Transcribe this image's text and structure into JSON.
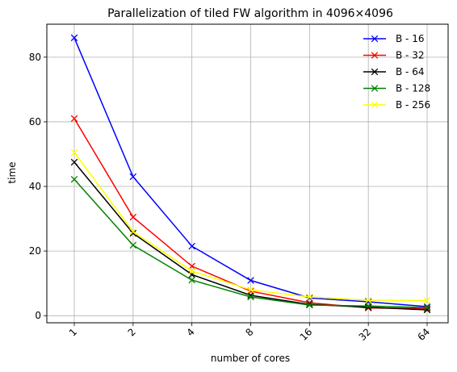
{
  "chart_data": {
    "type": "line",
    "title": "Parallelization of tiled FW algorithm in 4096×4096",
    "xlabel": "number of cores",
    "ylabel": "time",
    "categories": [
      "1",
      "2",
      "4",
      "8",
      "16",
      "32",
      "64"
    ],
    "ylim": [
      -2.2,
      90.2
    ],
    "yticks": [
      0,
      20,
      40,
      60,
      80
    ],
    "grid": true,
    "legend_position": "top-right",
    "marker": "x",
    "series": [
      {
        "name": "B - 16",
        "color": "#0000ff",
        "values": [
          86.0,
          43.0,
          21.5,
          10.9,
          5.5,
          4.3,
          2.8
        ]
      },
      {
        "name": "B - 32",
        "color": "#ff0000",
        "values": [
          61.0,
          30.5,
          15.3,
          7.6,
          4.0,
          2.4,
          2.2
        ]
      },
      {
        "name": "B - 64",
        "color": "#000000",
        "values": [
          47.5,
          25.5,
          12.7,
          6.3,
          3.5,
          2.6,
          1.8
        ]
      },
      {
        "name": "B - 128",
        "color": "#008000",
        "values": [
          42.2,
          21.8,
          11.0,
          5.8,
          3.3,
          3.0,
          2.5
        ]
      },
      {
        "name": "B - 256",
        "color": "#ffff00",
        "values": [
          50.5,
          26.0,
          13.8,
          8.0,
          5.8,
          4.8,
          4.7
        ]
      }
    ]
  }
}
